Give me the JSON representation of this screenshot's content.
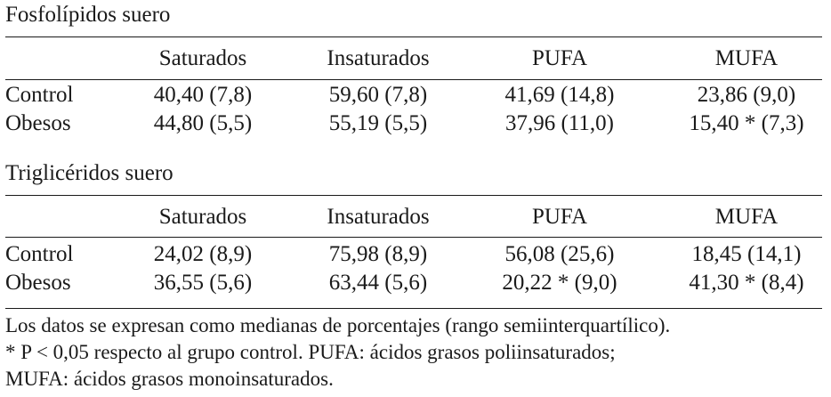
{
  "tables": [
    {
      "title": "Fosfolípidos suero",
      "columns": [
        "Saturados",
        "Insaturados",
        "PUFA",
        "MUFA"
      ],
      "rows": [
        {
          "label": "Control",
          "cells": [
            "40,40 (7,8)",
            "59,60 (7,8)",
            "41,69 (14,8)",
            "23,86 (9,0)"
          ]
        },
        {
          "label": "Obesos",
          "cells": [
            "44,80 (5,5)",
            "55,19 (5,5)",
            "37,96 (11,0)",
            "15,40 * (7,3)"
          ]
        }
      ]
    },
    {
      "title": "Triglicéridos suero",
      "columns": [
        "Saturados",
        "Insaturados",
        "PUFA",
        "MUFA"
      ],
      "rows": [
        {
          "label": "Control",
          "cells": [
            "24,02 (8,9)",
            "75,98 (8,9)",
            "56,08 (25,6)",
            "18,45 (14,1)"
          ]
        },
        {
          "label": "Obesos",
          "cells": [
            "36,55 (5,6)",
            "63,44 (5,6)",
            "20,22 * (9,0)",
            "41,30 * (8,4)"
          ]
        }
      ]
    }
  ],
  "notes": [
    "Los datos se expresan como medianas de porcentajes (rango semiinterquartílico).",
    "* P < 0,05 respecto al grupo control. PUFA: ácidos grasos poliinsaturados;",
    "MUFA: ácidos grasos monoinsaturados."
  ]
}
